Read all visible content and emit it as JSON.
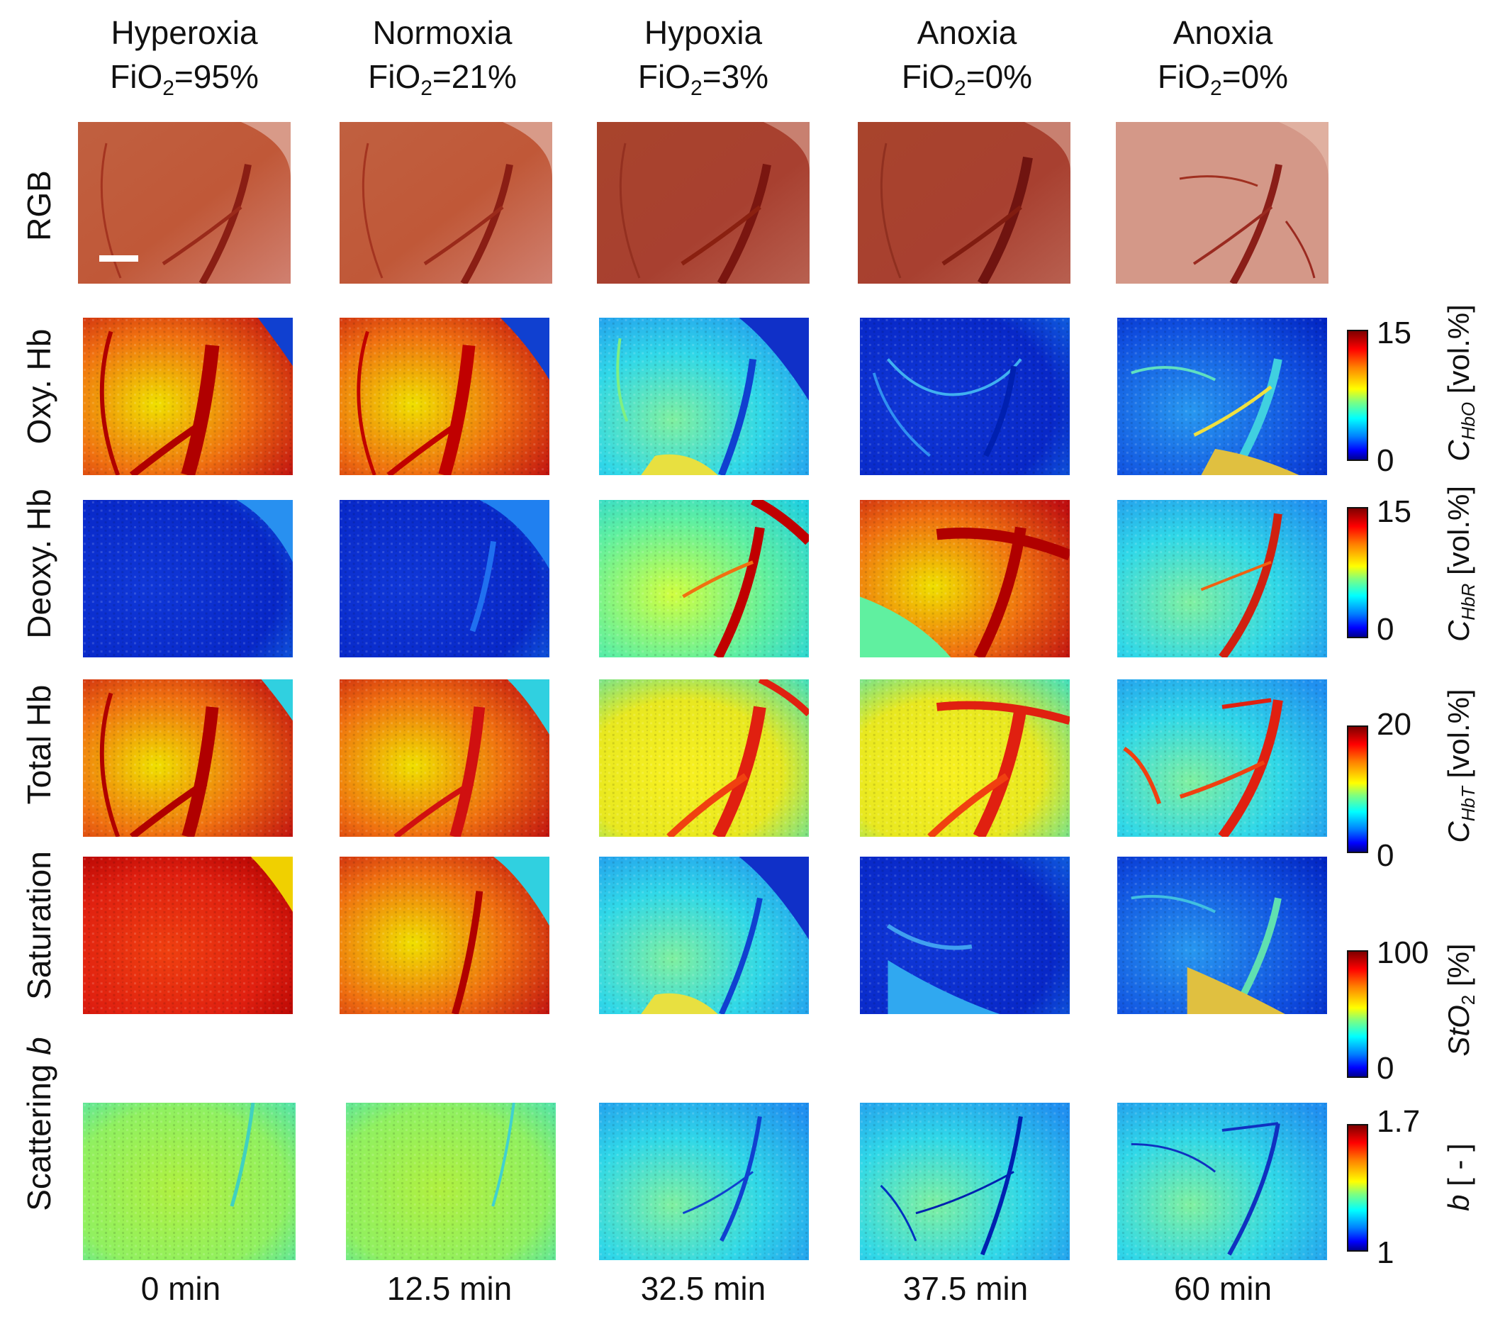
{
  "columns": [
    {
      "condition": "Hyperoxia",
      "fio2_prefix": "FiO",
      "fio2_sub": "2",
      "fio2_value": "=95%",
      "time": "0 min"
    },
    {
      "condition": "Normoxia",
      "fio2_prefix": "FiO",
      "fio2_sub": "2",
      "fio2_value": "=21%",
      "time": "12.5 min"
    },
    {
      "condition": "Hypoxia",
      "fio2_prefix": "FiO",
      "fio2_sub": "2",
      "fio2_value": "=3%",
      "time": "32.5 min"
    },
    {
      "condition": "Anoxia",
      "fio2_prefix": "FiO",
      "fio2_sub": "2",
      "fio2_value": "=0%",
      "time": "37.5 min"
    },
    {
      "condition": "Anoxia",
      "fio2_prefix": "FiO",
      "fio2_sub": "2",
      "fio2_value": "=0%",
      "time": "60 min"
    }
  ],
  "rows": {
    "rgb": {
      "label": "RGB"
    },
    "oxy": {
      "label": "Oxy. Hb",
      "cb_max": "15",
      "cb_min": "0",
      "unit_symbol": "C",
      "unit_sub": "HbO",
      "unit_suffix": " [vol.%]"
    },
    "deoxy": {
      "label": "Deoxy. Hb",
      "cb_max": "15",
      "cb_min": "0",
      "unit_symbol": "C",
      "unit_sub": "HbR",
      "unit_suffix": " [vol.%]"
    },
    "total": {
      "label": "Total Hb",
      "cb_max": "20",
      "cb_min": "0",
      "unit_symbol": "C",
      "unit_sub": "HbT",
      "unit_suffix": " [vol.%]"
    },
    "saturation": {
      "label": "Saturation",
      "cb_max": "100",
      "cb_min": "0",
      "unit_symbol": "StO",
      "unit_sub": "2",
      "unit_suffix": " [%]"
    },
    "scattering": {
      "label_main": "Scattering ",
      "label_var": "b",
      "cb_max": "1.7",
      "cb_min": "1",
      "unit_symbol": "b",
      "unit_suffix": " [ - ]"
    }
  },
  "colors": {
    "jet_high": "#b30000",
    "jet_low": "#0000c8",
    "rgb_tissue": "#c25a3a"
  }
}
